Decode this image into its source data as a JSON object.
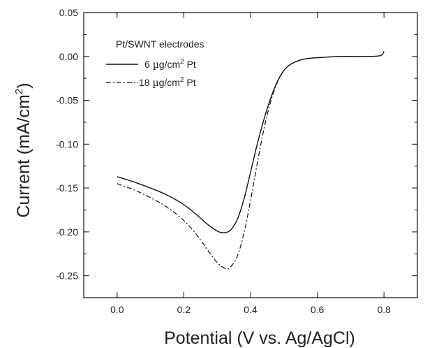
{
  "chart_data": {
    "type": "line",
    "xlabel": "Potential (V vs. Ag/AgCl)",
    "ylabel": "Current (mA/cm",
    "ylabel_sup": "2",
    "ylabel_end": ")",
    "xlim": [
      -0.1,
      0.9
    ],
    "ylim": [
      -0.275,
      0.05
    ],
    "x_ticks": [
      0.0,
      0.2,
      0.4,
      0.6,
      0.8
    ],
    "x_tick_labels": [
      "0.0",
      "0.2",
      "0.4",
      "0.6",
      "0.8"
    ],
    "y_ticks": [
      0.05,
      0.0,
      -0.05,
      -0.1,
      -0.15,
      -0.2,
      -0.25
    ],
    "y_tick_labels": [
      "0.05",
      "0.00",
      "-0.05",
      "-0.10",
      "-0.15",
      "-0.20",
      "-0.25"
    ],
    "grid": false,
    "legend_position": "top-left",
    "legend_title": "Pt/SWNT electrodes",
    "series": [
      {
        "label_pre": "6 ",
        "label_mu": "µ",
        "label_unit": "g/cm",
        "label_sup": "2",
        "label_post": " Pt",
        "style": "solid",
        "x": [
          0.0,
          0.05,
          0.1,
          0.15,
          0.2,
          0.24,
          0.27,
          0.3,
          0.32,
          0.34,
          0.36,
          0.38,
          0.4,
          0.42,
          0.44,
          0.46,
          0.48,
          0.5,
          0.52,
          0.55,
          0.58,
          0.62,
          0.66,
          0.7,
          0.75,
          0.79,
          0.8
        ],
        "y": [
          -0.137,
          -0.143,
          -0.15,
          -0.158,
          -0.169,
          -0.181,
          -0.191,
          -0.199,
          -0.201,
          -0.198,
          -0.186,
          -0.163,
          -0.132,
          -0.1,
          -0.072,
          -0.048,
          -0.029,
          -0.016,
          -0.009,
          -0.004,
          -0.002,
          -0.001,
          0.0,
          0.0,
          0.0,
          0.001,
          0.006
        ]
      },
      {
        "label_pre": "18 ",
        "label_mu": "µ",
        "label_unit": "g/cm",
        "label_sup": "2",
        "label_post": " Pt",
        "style": "dash-dot",
        "x": [
          0.0,
          0.05,
          0.1,
          0.15,
          0.2,
          0.24,
          0.27,
          0.3,
          0.32,
          0.33,
          0.34,
          0.36,
          0.38,
          0.4,
          0.42,
          0.44,
          0.46,
          0.48,
          0.5,
          0.52,
          0.55,
          0.58,
          0.62,
          0.66,
          0.7,
          0.75,
          0.79,
          0.8
        ],
        "y": [
          -0.145,
          -0.152,
          -0.161,
          -0.172,
          -0.187,
          -0.204,
          -0.22,
          -0.235,
          -0.241,
          -0.242,
          -0.24,
          -0.228,
          -0.202,
          -0.164,
          -0.122,
          -0.083,
          -0.052,
          -0.03,
          -0.016,
          -0.009,
          -0.004,
          -0.002,
          -0.001,
          0.0,
          0.0,
          0.0,
          0.001,
          0.006
        ]
      }
    ]
  }
}
